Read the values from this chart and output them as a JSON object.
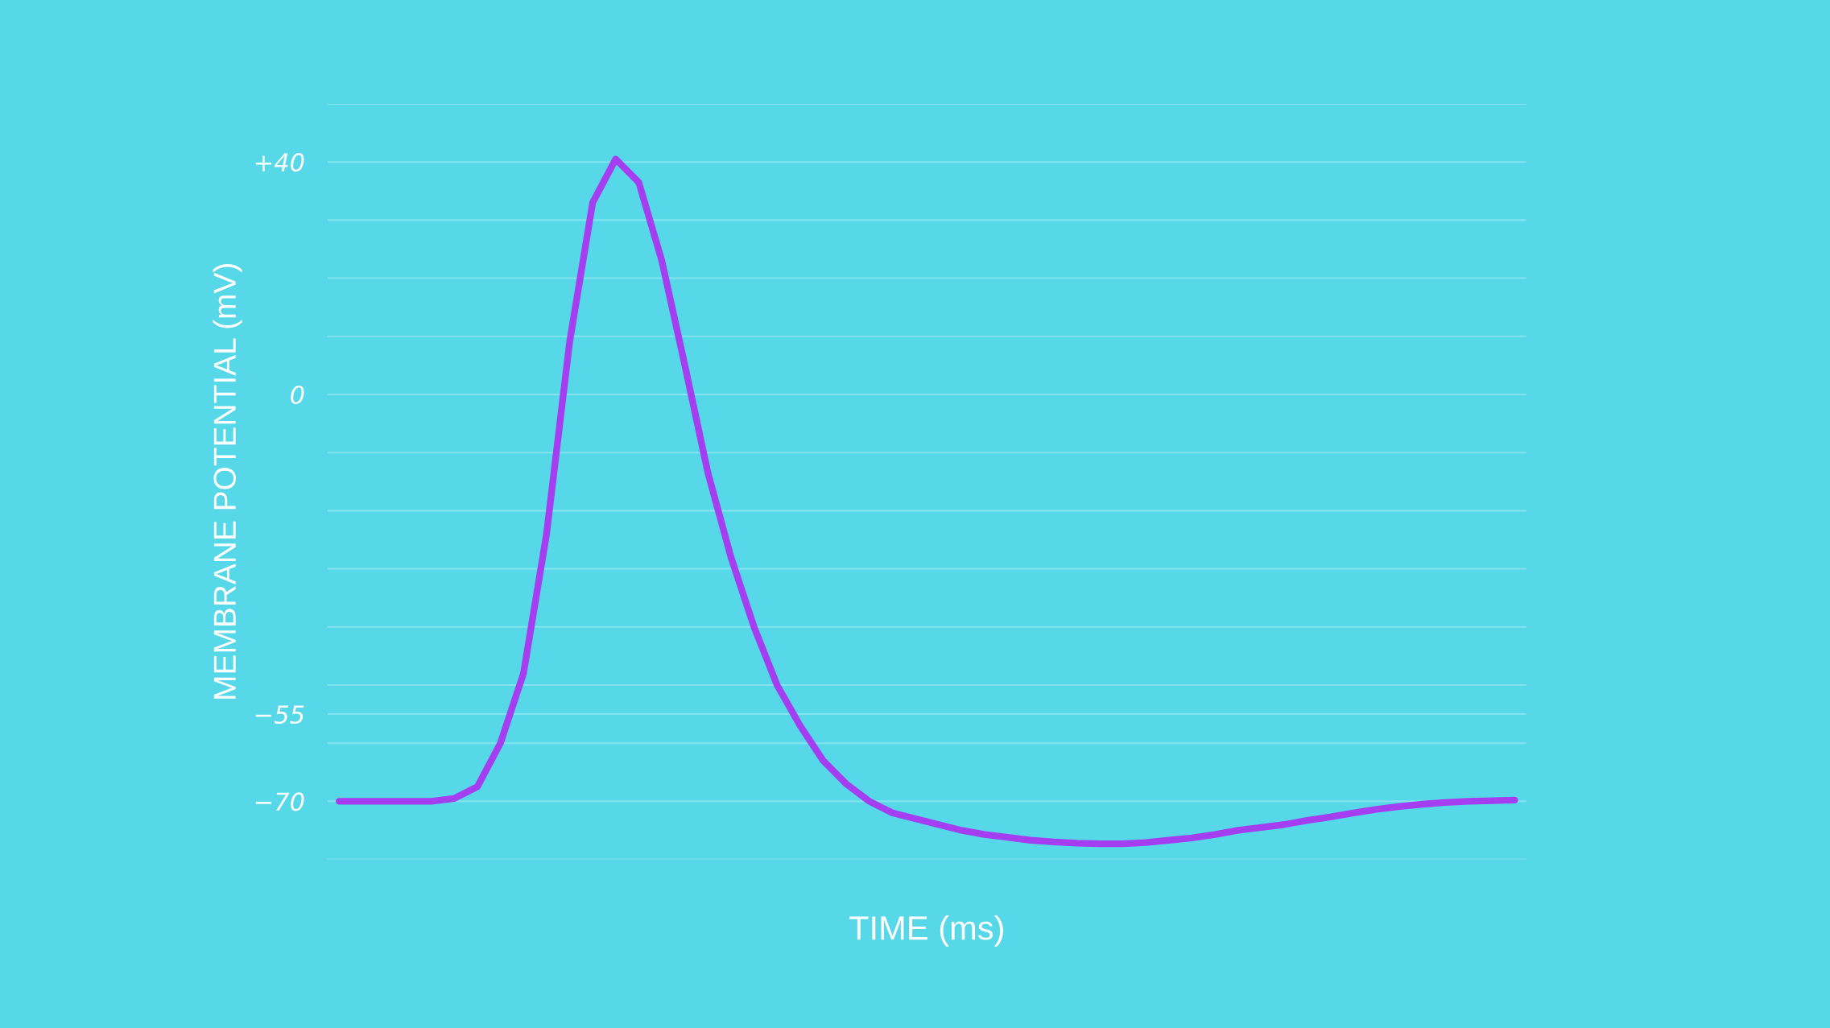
{
  "chart_data": {
    "type": "line",
    "xlabel": "TIME (ms)",
    "ylabel": "MEMBRANE POTENTIAL (mV)",
    "categories": [
      null,
      null,
      null,
      null,
      null,
      null,
      null,
      null,
      null,
      null,
      null,
      null,
      null,
      null,
      null,
      null,
      null,
      null,
      null,
      null,
      null,
      null,
      null,
      null,
      null,
      null,
      null,
      null,
      null,
      null,
      null,
      null,
      null,
      null,
      null,
      null,
      null,
      null,
      null,
      null,
      null,
      null,
      null,
      null,
      null,
      null,
      null,
      null,
      null,
      null,
      null,
      null
    ],
    "series": [
      {
        "color": "#a43ef0",
        "values": [
          -70,
          -70,
          -70,
          -70,
          -70,
          -69.5,
          -67.5,
          -60,
          -48,
          -24,
          9,
          33,
          40.5,
          36.5,
          23,
          5,
          -13.5,
          -28,
          -40,
          -50,
          -57,
          -63,
          -67,
          -70,
          -72,
          -73,
          -74,
          -75,
          -75.7,
          -76.2,
          -76.7,
          -77,
          -77.2,
          -77.3,
          -77.3,
          -77.1,
          -76.7,
          -76.3,
          -75.7,
          -75,
          -74.5,
          -74,
          -73.3,
          -72.7,
          -72,
          -71.4,
          -70.9,
          -70.5,
          -70.2,
          -70,
          -69.9,
          -69.8
        ]
      }
    ],
    "ylim": [
      -80,
      50
    ],
    "yticks": [
      {
        "value": 50,
        "label": null
      },
      {
        "value": 40,
        "label": "+40"
      },
      {
        "value": 30,
        "label": null
      },
      {
        "value": 20,
        "label": null
      },
      {
        "value": 10,
        "label": null
      },
      0,
      {
        "value": -10,
        "label": null
      },
      {
        "value": -20,
        "label": null
      },
      {
        "value": -30,
        "label": null
      },
      {
        "value": -40,
        "label": null
      },
      {
        "value": -50,
        "label": null
      },
      {
        "value": -55,
        "label": "−55"
      },
      {
        "value": -60,
        "label": null
      },
      {
        "value": -70,
        "label": "−70"
      },
      {
        "value": -80,
        "label": null
      }
    ],
    "grid": "y",
    "marker": "none",
    "line_style": "solid",
    "tick_labels": "y"
  }
}
